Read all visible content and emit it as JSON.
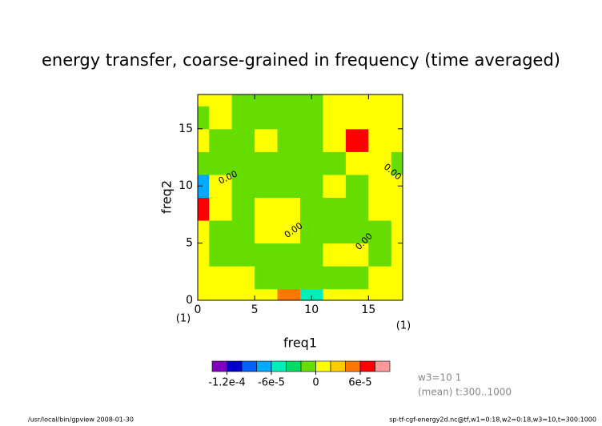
{
  "chart_data": {
    "type": "contour",
    "title": "energy transfer, coarse-grained in frequency (time averaged)",
    "x_label": "freq1",
    "y_label": "freq2",
    "x_unit": "(1)",
    "y_unit": "(1)",
    "x": [
      0,
      2,
      4,
      6,
      8,
      10,
      12,
      14,
      16,
      18
    ],
    "y": [
      0,
      2,
      4,
      6,
      8,
      10,
      12,
      14,
      16,
      18
    ],
    "z": [
      [
        1e-05,
        1e-05,
        1e-05,
        1e-05,
        4e-05,
        -6e-05,
        1e-05,
        1e-05,
        1e-05,
        1e-05
      ],
      [
        1e-05,
        1e-05,
        1e-05,
        -1e-05,
        -1e-05,
        -1e-05,
        -1e-05,
        -1e-05,
        1e-05,
        1e-05
      ],
      [
        1e-05,
        -1e-05,
        -1e-05,
        -1e-05,
        -1e-05,
        -1e-05,
        1e-05,
        1e-05,
        -1e-05,
        1e-05
      ],
      [
        1e-05,
        -1e-05,
        -1e-05,
        1e-05,
        1e-05,
        -1e-05,
        -1e-05,
        -1e-05,
        -1e-05,
        1e-05
      ],
      [
        7e-05,
        1e-05,
        -1e-05,
        1e-05,
        1e-05,
        -1e-05,
        -1e-05,
        -1e-05,
        1e-05,
        1e-05
      ],
      [
        -8e-05,
        1e-05,
        -1e-05,
        -1e-05,
        -1e-05,
        -1e-05,
        1e-05,
        -1e-05,
        1e-05,
        1e-05
      ],
      [
        -1e-05,
        -1e-05,
        -1e-05,
        -1e-05,
        -1e-05,
        -1e-05,
        -1e-05,
        1e-05,
        1e-05,
        -1e-05
      ],
      [
        1e-05,
        -1e-05,
        -1e-05,
        1e-05,
        -1e-05,
        -1e-05,
        1e-05,
        7e-05,
        1e-05,
        1e-05
      ],
      [
        -1e-05,
        1e-05,
        -1e-05,
        -1e-05,
        -1e-05,
        -1e-05,
        1e-05,
        1e-05,
        1e-05,
        1e-05
      ],
      [
        1e-05,
        1e-05,
        -1e-05,
        -1e-05,
        -1e-05,
        -1e-05,
        1e-05,
        1e-05,
        1e-05,
        1e-05
      ]
    ],
    "xlim": [
      0,
      18
    ],
    "ylim": [
      0,
      18
    ],
    "xticks": [
      0,
      5,
      10,
      15
    ],
    "yticks": [
      0,
      5,
      10,
      15
    ],
    "contour_labels": [
      "0.00",
      "0.00",
      "0.00",
      "0.00"
    ],
    "levels": [
      -0.00014,
      -0.00012,
      -0.0001,
      -8e-05,
      -6e-05,
      -4e-05,
      -2e-05,
      0,
      2e-05,
      4e-05,
      6e-05,
      8e-05,
      0.0001
    ],
    "colors": [
      "#7f00bf",
      "#0000cc",
      "#0060ff",
      "#00aaff",
      "#00eebb",
      "#00dd66",
      "#66dd00",
      "#ffff00",
      "#ffcc00",
      "#ff7700",
      "#ff0000",
      "#ff9999"
    ],
    "colorbar_ticks": [
      {
        "value": -0.00012,
        "label": "-1.2e-4"
      },
      {
        "value": -6e-05,
        "label": "-6e-5"
      },
      0,
      {
        "value": 6e-05,
        "label": "6e-5"
      }
    ],
    "info": [
      "w3=10 1",
      "(mean) t:300..1000"
    ],
    "footer_left": "/usr/local/bin/gpview  2008-01-30",
    "footer_right": "sp-tf-cgf-energy2d.nc@tf,w1=0:18,w2=0:18,w3=10,t=300:1000"
  }
}
